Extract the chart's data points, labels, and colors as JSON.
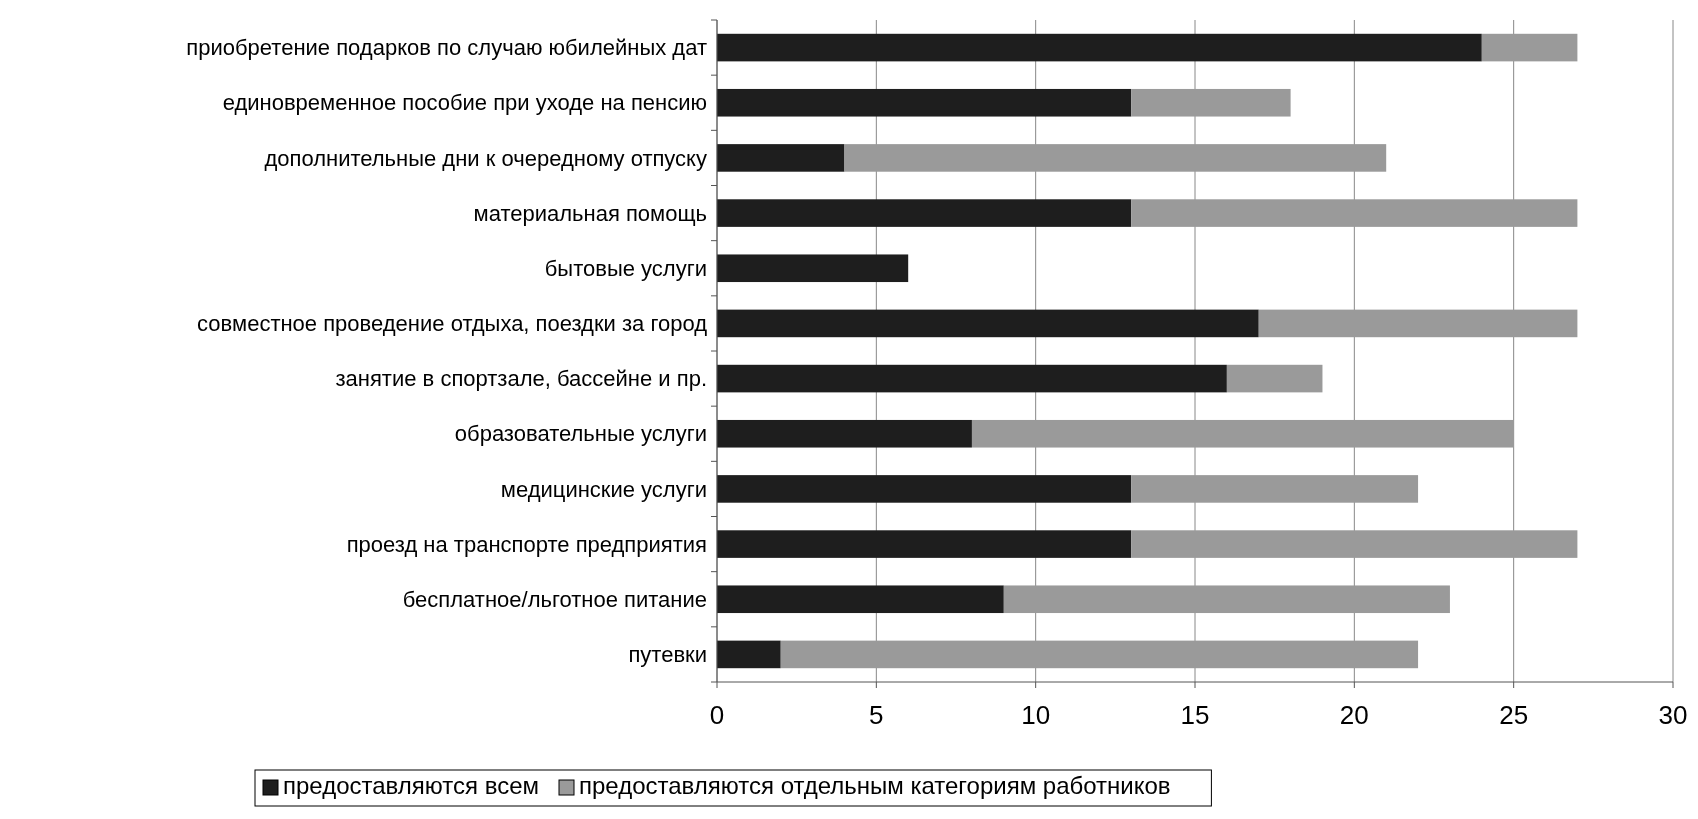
{
  "chart_data": {
    "type": "bar",
    "orientation": "horizontal",
    "stacked": true,
    "categories": [
      "приобретение подарков по случаю юбилейных дат",
      "единовременное пособие при уходе на пенсию",
      "дополнительные дни к очередному отпуску",
      "материальная помощь",
      "бытовые услуги",
      "совместное проведение отдыха, поездки за город",
      "занятие в спортзале, бассейне и пр.",
      "образовательные услуги",
      "медицинские услуги",
      "проезд на транспорте предприятия",
      "бесплатное/льготное питание",
      "путевки"
    ],
    "series": [
      {
        "name": "предоставляются всем",
        "color": "#1e1e1e",
        "values": [
          24,
          13,
          4,
          13,
          6,
          17,
          16,
          8,
          13,
          13,
          9,
          2
        ]
      },
      {
        "name": "предоставляются отдельным категориям работников",
        "color": "#9a9a9a",
        "values": [
          3,
          5,
          17,
          14,
          0,
          10,
          3,
          17,
          9,
          14,
          14,
          20
        ]
      }
    ],
    "xlim": [
      0,
      30
    ],
    "xticks": [
      0,
      5,
      10,
      15,
      20,
      25,
      30
    ],
    "grid": "x",
    "legend": "bottom"
  }
}
